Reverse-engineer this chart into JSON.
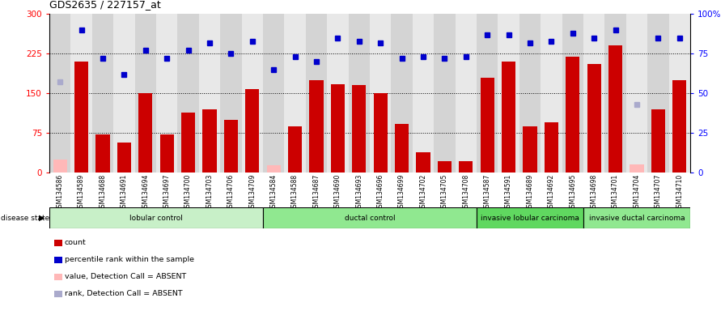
{
  "title": "GDS2635 / 227157_at",
  "samples": [
    "GSM134586",
    "GSM134589",
    "GSM134688",
    "GSM134691",
    "GSM134694",
    "GSM134697",
    "GSM134700",
    "GSM134703",
    "GSM134706",
    "GSM134709",
    "GSM134584",
    "GSM134588",
    "GSM134687",
    "GSM134690",
    "GSM134693",
    "GSM134696",
    "GSM134699",
    "GSM134702",
    "GSM134705",
    "GSM134708",
    "GSM134587",
    "GSM134591",
    "GSM134689",
    "GSM134692",
    "GSM134695",
    "GSM134698",
    "GSM134701",
    "GSM134704",
    "GSM134707",
    "GSM134710"
  ],
  "count_values": [
    25,
    210,
    72,
    57,
    150,
    72,
    113,
    120,
    100,
    158,
    14,
    88,
    175,
    167,
    165,
    150,
    92,
    38,
    22,
    22,
    180,
    210,
    88,
    95,
    220,
    205,
    240,
    15,
    120,
    175
  ],
  "is_absent_count": [
    true,
    false,
    false,
    false,
    false,
    false,
    false,
    false,
    false,
    false,
    true,
    false,
    false,
    false,
    false,
    false,
    false,
    false,
    false,
    false,
    false,
    false,
    false,
    false,
    false,
    false,
    false,
    true,
    false,
    false
  ],
  "rank_values": [
    57,
    90,
    72,
    62,
    77,
    72,
    77,
    82,
    75,
    83,
    65,
    73,
    70,
    85,
    83,
    82,
    72,
    73,
    72,
    73,
    87,
    87,
    82,
    83,
    88,
    85,
    90,
    43,
    85,
    85
  ],
  "is_absent_rank": [
    true,
    false,
    false,
    false,
    false,
    false,
    false,
    false,
    false,
    false,
    false,
    false,
    false,
    false,
    false,
    false,
    false,
    false,
    false,
    false,
    false,
    false,
    false,
    false,
    false,
    false,
    false,
    true,
    false,
    false
  ],
  "groups": [
    {
      "label": "lobular control",
      "start": 0,
      "end": 10,
      "color": "#c8f0c8"
    },
    {
      "label": "ductal control",
      "start": 10,
      "end": 20,
      "color": "#90e890"
    },
    {
      "label": "invasive lobular carcinoma",
      "start": 20,
      "end": 25,
      "color": "#60d860"
    },
    {
      "label": "invasive ductal carcinoma",
      "start": 25,
      "end": 30,
      "color": "#90e890"
    }
  ],
  "ylim_left": [
    0,
    300
  ],
  "yticks_left": [
    0,
    75,
    150,
    225,
    300
  ],
  "ylim_right": [
    0,
    100
  ],
  "yticks_right": [
    0,
    25,
    50,
    75,
    100
  ],
  "bar_color": "#cc0000",
  "absent_bar_color": "#ffb8b8",
  "rank_color": "#0000cc",
  "absent_rank_color": "#aaaacc",
  "grid_vals": [
    75,
    150,
    225
  ],
  "legend_items": [
    {
      "label": "count",
      "color": "#cc0000"
    },
    {
      "label": "percentile rank within the sample",
      "color": "#0000cc"
    },
    {
      "label": "value, Detection Call = ABSENT",
      "color": "#ffb8b8"
    },
    {
      "label": "rank, Detection Call = ABSENT",
      "color": "#aaaacc"
    }
  ]
}
